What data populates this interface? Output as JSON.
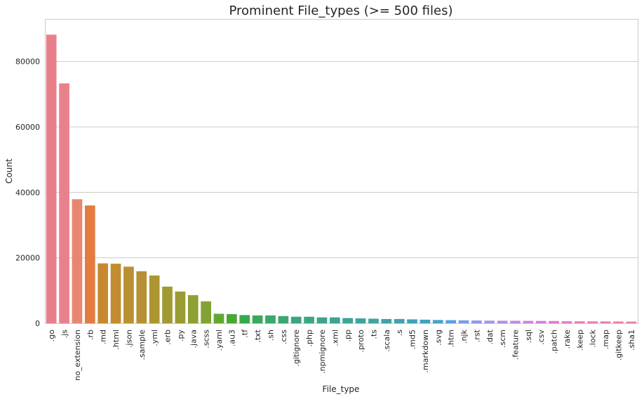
{
  "chart_data": {
    "type": "bar",
    "title": "Prominent File_types (>= 500 files)",
    "xlabel": "File_type",
    "ylabel": "Count",
    "ylim": [
      0,
      93000
    ],
    "yticks": [
      0,
      20000,
      40000,
      60000,
      80000
    ],
    "grid": "horizontal",
    "categories": [
      ".go",
      ".js",
      "no_extension",
      ".rb",
      ".md",
      ".html",
      ".json",
      ".sample",
      ".yml",
      ".erb",
      ".py",
      ".java",
      ".scss",
      ".yaml",
      ".au3",
      ".tf",
      ".txt",
      ".sh",
      ".css",
      ".gitignore",
      ".php",
      ".npmignore",
      ".xml",
      ".pp",
      ".proto",
      ".ts",
      ".scala",
      ".s",
      ".md5",
      ".markdown",
      ".svg",
      ".htm",
      ".njk",
      ".rst",
      ".dat",
      ".scm",
      ".feature",
      ".sql",
      ".csv",
      ".patch",
      ".rake",
      ".keep",
      ".lock",
      ".map",
      ".gitkeep",
      ".sha1"
    ],
    "values": [
      88200,
      73300,
      37900,
      36000,
      18300,
      18200,
      17300,
      15900,
      14600,
      11200,
      9700,
      8600,
      6700,
      2900,
      2800,
      2500,
      2400,
      2400,
      2200,
      2000,
      2000,
      1800,
      1800,
      1600,
      1500,
      1400,
      1300,
      1300,
      1200,
      1100,
      1000,
      950,
      900,
      850,
      800,
      780,
      760,
      740,
      720,
      700,
      620,
      600,
      580,
      560,
      540,
      520
    ],
    "colors": [
      "#e8808c",
      "#e8818b",
      "#e8876f",
      "#e37c42",
      "#c8882f",
      "#c28c30",
      "#ba9032",
      "#b89033",
      "#ad9534",
      "#a19a34",
      "#999b33",
      "#8fa033",
      "#80a333",
      "#62a733",
      "#48a833",
      "#39a84e",
      "#3aa95e",
      "#3aa869",
      "#3ba774",
      "#3ba67d",
      "#3ca684",
      "#3ca58b",
      "#3da491",
      "#3ea496",
      "#3ea39c",
      "#3fa3a2",
      "#40a2a8",
      "#41a1ae",
      "#42a0b6",
      "#439fc0",
      "#47a0cd",
      "#5b9fe0",
      "#7a9ceb",
      "#8f9ae8",
      "#a195e8",
      "#b390e6",
      "#c289e4",
      "#cc84e2",
      "#d67ed9",
      "#e078d2",
      "#e479c8",
      "#e67bbe",
      "#e67db4",
      "#e77faa",
      "#e881a0",
      "#e88196"
    ]
  }
}
